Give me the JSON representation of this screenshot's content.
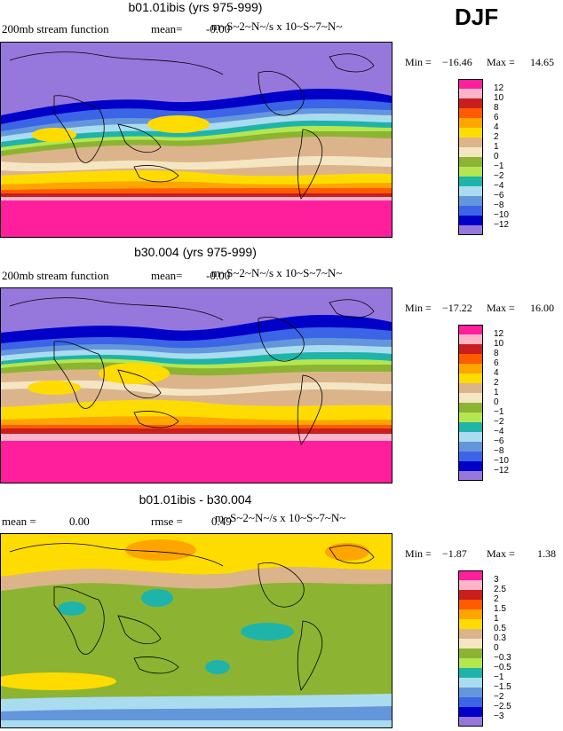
{
  "season": "DJF",
  "panels": [
    {
      "title": "b01.01ibis (yrs 975-999)",
      "left_label": "200mb stream function",
      "mid_label": "mean=",
      "mid_value": "-0.00",
      "units": "m~S~2~N~/s x 10~S~7~N~",
      "min_label": "Min =",
      "min_value": "−16.46",
      "max_label": "Max =",
      "max_value": "14.65",
      "levels": [
        "12",
        "10",
        "8",
        "6",
        "4",
        "2",
        "1",
        "0",
        "−1",
        "−2",
        "−4",
        "−6",
        "−8",
        "−10",
        "−12"
      ]
    },
    {
      "title": "b30.004 (yrs 975-999)",
      "left_label": "200mb stream function",
      "mid_label": "mean=",
      "mid_value": "-0.00",
      "units": "m~S~2~N~/s x 10~S~7~N~",
      "min_label": "Min =",
      "min_value": "−17.22",
      "max_label": "Max =",
      "max_value": "16.00",
      "levels": [
        "12",
        "10",
        "8",
        "6",
        "4",
        "2",
        "1",
        "0",
        "−1",
        "−2",
        "−4",
        "−6",
        "−8",
        "−10",
        "−12"
      ]
    },
    {
      "title": "b01.01ibis - b30.004",
      "left_label": "mean =",
      "left_value": "0.00",
      "mid_label": "rmse =",
      "mid_value": "0.49",
      "units": "m~S~2~N~/s x 10~S~7~N~",
      "min_label": "Min =",
      "min_value": "−1.87",
      "max_label": "Max =",
      "max_value": "1.38",
      "levels": [
        "3",
        "2.5",
        "2",
        "1.5",
        "1",
        "0.5",
        "0.3",
        "0",
        "−0.3",
        "−0.5",
        "−1",
        "−1.5",
        "−2",
        "−2.5",
        "−3"
      ]
    }
  ],
  "palette": [
    "#ff1e9c",
    "#ffb4c8",
    "#c81e1e",
    "#ff5a00",
    "#ffa500",
    "#ffdc00",
    "#dcb48c",
    "#f5e6c3",
    "#8cb432",
    "#b4e650",
    "#1eb4aa",
    "#aadcf0",
    "#6496dc",
    "#3c64e6",
    "#0000c8",
    "#9678dc"
  ],
  "chart_data": [
    {
      "type": "heatmap",
      "title": "b01.01ibis (yrs 975-999)",
      "variable": "200mb stream function",
      "units": "m~S~2~N~/s x 10~S~7~N~",
      "mean": -0.0,
      "min": -16.46,
      "max": 14.65,
      "contour_levels": [
        -12,
        -10,
        -8,
        -6,
        -4,
        -2,
        -1,
        0,
        1,
        2,
        4,
        6,
        8,
        10,
        12
      ],
      "zonal_bands_north_to_south": [
        -12,
        -10,
        -8,
        -6,
        -4,
        -2,
        -1,
        0,
        1,
        2,
        4,
        6,
        8,
        10,
        12
      ]
    },
    {
      "type": "heatmap",
      "title": "b30.004 (yrs 975-999)",
      "variable": "200mb stream function",
      "units": "m~S~2~N~/s x 10~S~7~N~",
      "mean": -0.0,
      "min": -17.22,
      "max": 16.0,
      "contour_levels": [
        -12,
        -10,
        -8,
        -6,
        -4,
        -2,
        -1,
        0,
        1,
        2,
        4,
        6,
        8,
        10,
        12
      ],
      "zonal_bands_north_to_south": [
        -12,
        -10,
        -8,
        -6,
        -4,
        -2,
        -1,
        0,
        1,
        2,
        4,
        6,
        8,
        10,
        12
      ]
    },
    {
      "type": "heatmap",
      "title": "b01.01ibis - b30.004",
      "units": "m~S~2~N~/s x 10~S~7~N~",
      "mean": 0.0,
      "rmse": 0.49,
      "min": -1.87,
      "max": 1.38,
      "contour_levels": [
        -3,
        -2.5,
        -2,
        -1.5,
        -1,
        -0.5,
        -0.3,
        0,
        0.3,
        0.5,
        1,
        1.5,
        2,
        2.5,
        3
      ]
    }
  ]
}
